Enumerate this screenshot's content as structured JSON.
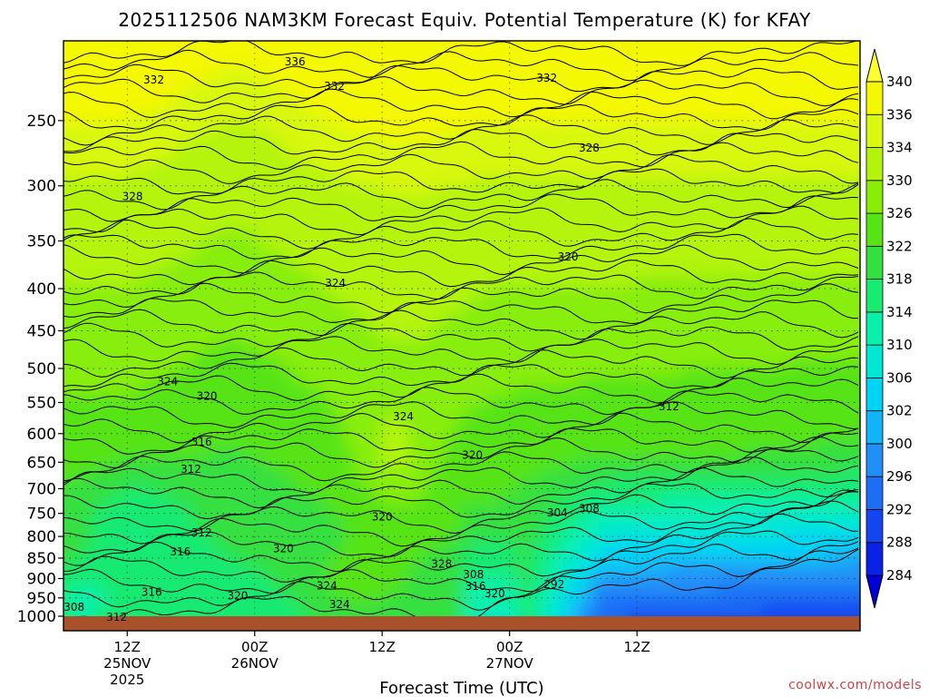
{
  "chart_data": {
    "type": "heatmap",
    "title": "2025112506 NAM3KM Forecast Equiv. Potential Temperature (K) for KFAY",
    "xlabel": "Forecast Time (UTC)",
    "ylabel": "",
    "y_scale": "log",
    "y_inverted": true,
    "ylim": [
      1000,
      200
    ],
    "xlim_hours": [
      6,
      81
    ],
    "grid": true,
    "y_ticks": [
      250,
      300,
      350,
      400,
      450,
      500,
      550,
      600,
      650,
      700,
      750,
      800,
      850,
      900,
      950,
      1000
    ],
    "x_ticks": [
      {
        "hour": 12,
        "lines": [
          "12Z",
          "25NOV",
          "2025"
        ]
      },
      {
        "hour": 24,
        "lines": [
          "00Z",
          "26NOV"
        ]
      },
      {
        "hour": 36,
        "lines": [
          "12Z"
        ]
      },
      {
        "hour": 48,
        "lines": [
          "00Z",
          "27NOV"
        ]
      },
      {
        "hour": 60,
        "lines": [
          "12Z"
        ]
      }
    ],
    "colorbar": {
      "levels": [
        284,
        288,
        292,
        296,
        300,
        302,
        306,
        310,
        314,
        318,
        322,
        326,
        330,
        334,
        336,
        340
      ],
      "colors": [
        "#0000d8",
        "#0a22e6",
        "#1446f0",
        "#1e6ef5",
        "#2090f8",
        "#12b4f8",
        "#00d4f4",
        "#00e8d4",
        "#08f0aa",
        "#18ea72",
        "#34e040",
        "#56e414",
        "#88ee08",
        "#b4f40c",
        "#d8f810",
        "#f4f800",
        "#ffff30"
      ],
      "placement": "right"
    },
    "contour_labels": [
      {
        "label": "336",
        "hour": 27.8,
        "p": 212
      },
      {
        "label": "332",
        "hour": 14.5,
        "p": 223
      },
      {
        "label": "332",
        "hour": 31.5,
        "p": 227
      },
      {
        "label": "332",
        "hour": 51.5,
        "p": 222
      },
      {
        "label": "328",
        "hour": 55.5,
        "p": 270
      },
      {
        "label": "328",
        "hour": 12.5,
        "p": 309
      },
      {
        "label": "324",
        "hour": 31.6,
        "p": 394
      },
      {
        "label": "320",
        "hour": 53.5,
        "p": 366
      },
      {
        "label": "324",
        "hour": 15.8,
        "p": 519
      },
      {
        "label": "320",
        "hour": 19.5,
        "p": 540
      },
      {
        "label": "324",
        "hour": 38.0,
        "p": 572
      },
      {
        "label": "312",
        "hour": 63.0,
        "p": 556
      },
      {
        "label": "316",
        "hour": 19.0,
        "p": 614
      },
      {
        "label": "320",
        "hour": 44.5,
        "p": 637
      },
      {
        "label": "312",
        "hour": 18.0,
        "p": 663
      },
      {
        "label": "320",
        "hour": 36.0,
        "p": 757
      },
      {
        "label": "308",
        "hour": 55.5,
        "p": 740
      },
      {
        "label": "304",
        "hour": 52.5,
        "p": 749
      },
      {
        "label": "312",
        "hour": 19.0,
        "p": 792
      },
      {
        "label": "316",
        "hour": 17.0,
        "p": 835
      },
      {
        "label": "320",
        "hour": 26.7,
        "p": 828
      },
      {
        "label": "328",
        "hour": 41.6,
        "p": 864
      },
      {
        "label": "308",
        "hour": 44.6,
        "p": 890
      },
      {
        "label": "316",
        "hour": 44.8,
        "p": 920
      },
      {
        "label": "320",
        "hour": 46.6,
        "p": 938
      },
      {
        "label": "292",
        "hour": 52.2,
        "p": 915
      },
      {
        "label": "324",
        "hour": 30.8,
        "p": 918
      },
      {
        "label": "316",
        "hour": 14.3,
        "p": 935
      },
      {
        "label": "320",
        "hour": 22.4,
        "p": 944
      },
      {
        "label": "324",
        "hour": 32.0,
        "p": 968
      },
      {
        "label": "308",
        "hour": 7.0,
        "p": 975
      },
      {
        "label": "312",
        "hour": 11.0,
        "p": 1002
      }
    ]
  },
  "credit": "coolwx.com/models"
}
